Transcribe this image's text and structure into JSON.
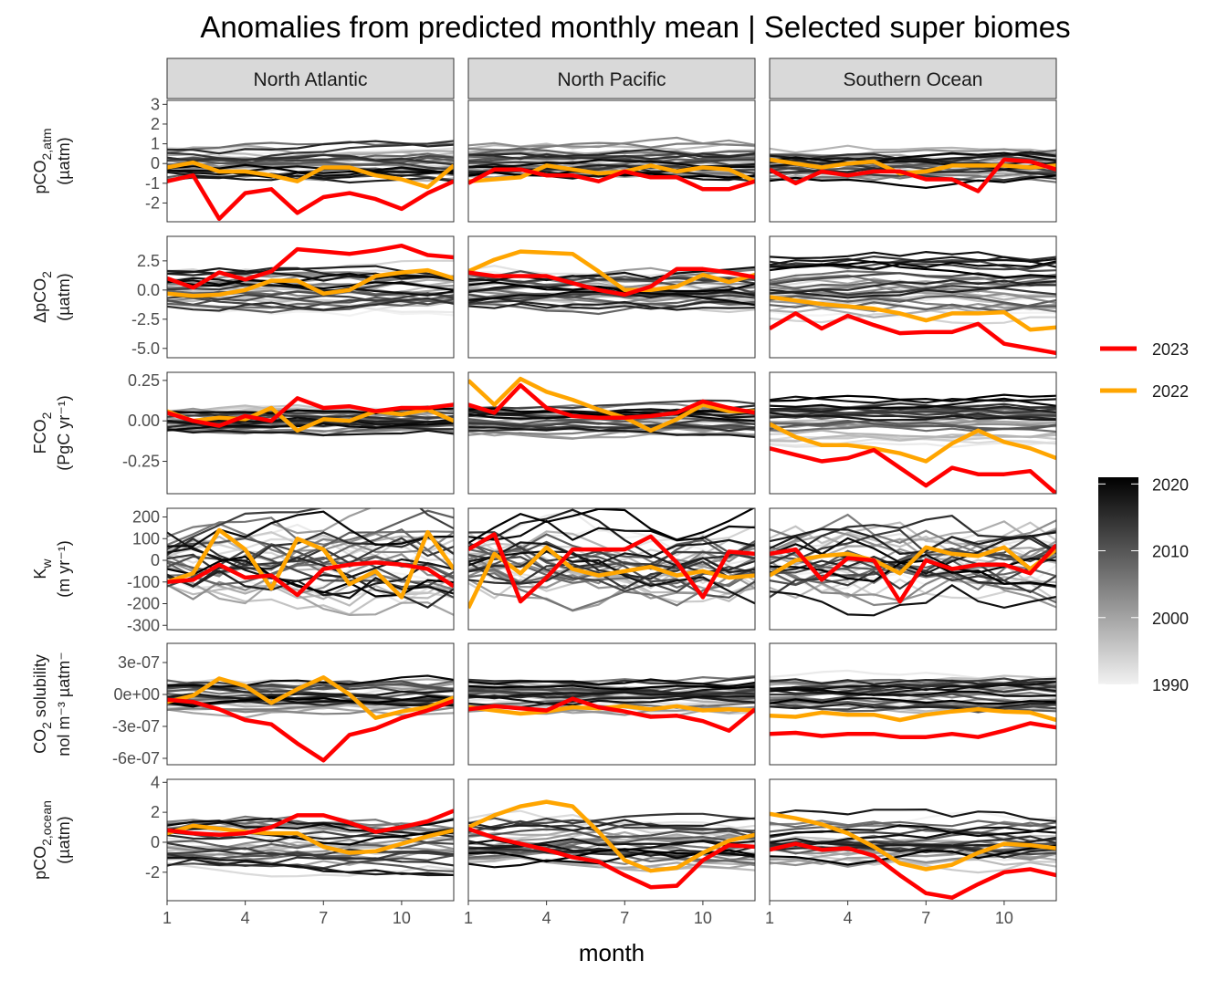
{
  "chart_data": {
    "type": "line",
    "title": "Anomalies from predicted monthly mean | Selected super biomes",
    "xlabel": "month",
    "x": [
      1,
      2,
      3,
      4,
      5,
      6,
      7,
      8,
      9,
      10,
      11,
      12
    ],
    "x_ticks": [
      1,
      4,
      7,
      10
    ],
    "x_tick_labels": [
      "1",
      "4",
      "7",
      "10"
    ],
    "facets": [
      "North Atlantic",
      "North Pacific",
      "Southern Ocean"
    ],
    "variables": [
      {
        "id": "pco2_atm",
        "ylabel_main": "pCO",
        "ylabel_sub": "2,atm",
        "ylabel_sup": "",
        "ylabel_suffix": "",
        "ylabel_line2": "(µatm)",
        "ylim": [
          -2.95,
          3.2
        ],
        "ticks": [
          -2,
          -1,
          0,
          1,
          2,
          3
        ],
        "tick_labels": [
          "-2",
          "-1",
          "0",
          "1",
          "2",
          "3"
        ],
        "bg_amp": 0.9,
        "series": [
          {
            "name": "2023",
            "facet": "North Atlantic",
            "values": [
              -0.9,
              -0.6,
              -2.8,
              -1.5,
              -1.3,
              -2.5,
              -1.7,
              -1.5,
              -1.8,
              -2.3,
              -1.5,
              -0.9
            ]
          },
          {
            "name": "2022",
            "facet": "North Atlantic",
            "values": [
              -0.2,
              0.05,
              -0.4,
              -0.4,
              -0.6,
              -0.9,
              -0.2,
              -0.2,
              -0.6,
              -0.8,
              -1.2,
              -0.1
            ]
          },
          {
            "name": "2023",
            "facet": "North Pacific",
            "values": [
              -1.0,
              -0.3,
              -0.3,
              -0.6,
              -0.6,
              -0.9,
              -0.4,
              -0.7,
              -0.7,
              -1.3,
              -1.3,
              -0.9
            ]
          },
          {
            "name": "2022",
            "facet": "North Pacific",
            "values": [
              -0.9,
              -0.8,
              -0.7,
              -0.1,
              -0.3,
              -0.5,
              -0.4,
              -0.1,
              -0.4,
              -0.2,
              -0.3,
              -0.9
            ]
          },
          {
            "name": "2023",
            "facet": "Southern Ocean",
            "values": [
              -0.3,
              -1.0,
              -0.4,
              -0.6,
              -0.4,
              -0.4,
              -0.8,
              -0.8,
              -1.4,
              0.2,
              0.1,
              -0.3
            ]
          },
          {
            "name": "2022",
            "facet": "Southern Ocean",
            "values": [
              0.2,
              0.0,
              -0.2,
              0.0,
              0.1,
              -0.5,
              -0.4,
              -0.1,
              -0.1,
              -0.1,
              -0.2,
              -0.1
            ]
          }
        ]
      },
      {
        "id": "dpco2",
        "ylabel_main": "ΔpCO",
        "ylabel_sub": "2",
        "ylabel_sup": "",
        "ylabel_suffix": "",
        "ylabel_line2": "(µatm)",
        "ylim": [
          -5.8,
          4.6
        ],
        "ticks": [
          -5,
          -2.5,
          0,
          2.5
        ],
        "tick_labels": [
          "-5.0",
          "-2.5",
          "0.0",
          "2.5"
        ],
        "bg_amp": 1.8,
        "series": [
          {
            "name": "2023",
            "facet": "North Atlantic",
            "values": [
              1.0,
              0.2,
              1.5,
              0.9,
              1.6,
              3.5,
              3.3,
              3.1,
              3.4,
              3.8,
              3.0,
              2.8
            ]
          },
          {
            "name": "2022",
            "facet": "North Atlantic",
            "values": [
              -0.3,
              -0.5,
              -0.4,
              0.0,
              0.8,
              0.8,
              -0.3,
              0.0,
              1.2,
              1.5,
              1.7,
              1.0
            ]
          },
          {
            "name": "2023",
            "facet": "North Pacific",
            "values": [
              1.5,
              1.2,
              1.2,
              1.2,
              0.6,
              0.0,
              -0.4,
              0.3,
              1.8,
              1.8,
              1.5,
              1.1
            ]
          },
          {
            "name": "2022",
            "facet": "North Pacific",
            "values": [
              1.6,
              2.6,
              3.3,
              3.2,
              3.1,
              1.6,
              0.0,
              0.0,
              0.3,
              1.3,
              0.7,
              1.3
            ]
          },
          {
            "name": "2023",
            "facet": "Southern Ocean",
            "values": [
              -3.3,
              -2.0,
              -3.3,
              -2.2,
              -3.0,
              -3.7,
              -3.6,
              -3.6,
              -2.9,
              -4.6,
              -5.0,
              -5.4
            ]
          },
          {
            "name": "2022",
            "facet": "Southern Ocean",
            "values": [
              -0.6,
              -0.9,
              -1.2,
              -1.4,
              -1.6,
              -2.0,
              -2.6,
              -2.0,
              -2.0,
              -1.9,
              -3.4,
              -3.2
            ]
          }
        ]
      },
      {
        "id": "fco2",
        "ylabel_main": "FCO",
        "ylabel_sub": "2",
        "ylabel_sup": "",
        "ylabel_suffix": "",
        "ylabel_line2": "(PgC yr⁻¹)",
        "ylim": [
          -0.45,
          0.3
        ],
        "ticks": [
          -0.25,
          0,
          0.25
        ],
        "tick_labels": [
          "-0.25",
          "0.00",
          "0.25"
        ],
        "bg_amp": 0.09,
        "series": [
          {
            "name": "2023",
            "facet": "North Atlantic",
            "values": [
              0.05,
              0.0,
              -0.03,
              0.03,
              0.0,
              0.14,
              0.08,
              0.09,
              0.06,
              0.08,
              0.08,
              0.1
            ]
          },
          {
            "name": "2022",
            "facet": "North Atlantic",
            "values": [
              0.06,
              0.0,
              0.02,
              0.01,
              0.08,
              -0.06,
              0.01,
              0.0,
              0.06,
              0.04,
              0.07,
              0.0
            ]
          },
          {
            "name": "2023",
            "facet": "North Pacific",
            "values": [
              0.1,
              0.05,
              0.22,
              0.08,
              0.03,
              0.02,
              0.02,
              0.03,
              0.05,
              0.12,
              0.08,
              0.05
            ]
          },
          {
            "name": "2022",
            "facet": "North Pacific",
            "values": [
              0.25,
              0.1,
              0.26,
              0.18,
              0.13,
              0.07,
              0.02,
              -0.06,
              0.01,
              0.1,
              0.06,
              0.06
            ]
          },
          {
            "name": "2023",
            "facet": "Southern Ocean",
            "values": [
              -0.17,
              -0.21,
              -0.25,
              -0.23,
              -0.18,
              -0.29,
              -0.4,
              -0.29,
              -0.33,
              -0.33,
              -0.31,
              -0.45
            ]
          },
          {
            "name": "2022",
            "facet": "Southern Ocean",
            "values": [
              -0.02,
              -0.1,
              -0.15,
              -0.15,
              -0.17,
              -0.2,
              -0.25,
              -0.14,
              -0.06,
              -0.13,
              -0.17,
              -0.23
            ]
          }
        ]
      },
      {
        "id": "kw",
        "ylabel_main": "K",
        "ylabel_sub": "w",
        "ylabel_sup": "",
        "ylabel_suffix": "",
        "ylabel_line2": "(m yr⁻¹)",
        "ylim": [
          -320,
          240
        ],
        "ticks": [
          -300,
          -200,
          -100,
          0,
          100,
          200
        ],
        "tick_labels": [
          "-300",
          "-200",
          "-100",
          "0",
          "100",
          "200"
        ],
        "bg_amp": 130,
        "series": [
          {
            "name": "2023",
            "facet": "North Atlantic",
            "values": [
              -100,
              -90,
              -20,
              -80,
              -70,
              -160,
              -40,
              -20,
              -10,
              -20,
              -40,
              -120
            ]
          },
          {
            "name": "2022",
            "facet": "North Atlantic",
            "values": [
              -100,
              -60,
              140,
              50,
              -130,
              100,
              50,
              -110,
              -50,
              -170,
              130,
              -40
            ]
          },
          {
            "name": "2023",
            "facet": "North Pacific",
            "values": [
              50,
              120,
              -190,
              -80,
              50,
              50,
              50,
              110,
              -10,
              -170,
              40,
              30
            ]
          },
          {
            "name": "2022",
            "facet": "North Pacific",
            "values": [
              -220,
              30,
              -60,
              60,
              -40,
              -70,
              -50,
              -30,
              -70,
              -50,
              -80,
              -70
            ]
          },
          {
            "name": "2023",
            "facet": "Southern Ocean",
            "values": [
              30,
              50,
              -90,
              10,
              0,
              -190,
              0,
              -40,
              -20,
              -20,
              -60,
              70
            ]
          },
          {
            "name": "2022",
            "facet": "Southern Ocean",
            "values": [
              -70,
              0,
              20,
              30,
              0,
              -60,
              60,
              30,
              20,
              60,
              -40,
              50
            ]
          }
        ]
      },
      {
        "id": "solubility",
        "ylabel_main": "CO",
        "ylabel_sub": "2",
        "ylabel_sup": "",
        "ylabel_suffix": " solubility",
        "ylabel_line2": "nol m⁻³ µatm⁻",
        "ylim": [
          -6.6e-07,
          4.8e-07
        ],
        "ticks": [
          -6e-07,
          -3e-07,
          0,
          3e-07
        ],
        "tick_labels": [
          "-6e-07",
          "-3e-07",
          "0e+00",
          "3e-07"
        ],
        "bg_amp": 1.6e-07,
        "series": [
          {
            "name": "2023",
            "facet": "North Atlantic",
            "values": [
              -5e-08,
              -7e-08,
              -1.4e-07,
              -2.4e-07,
              -2.8e-07,
              -4.6e-07,
              -6.2e-07,
              -3.8e-07,
              -3.2e-07,
              -2.2e-07,
              -1.5e-07,
              -6e-08
            ]
          },
          {
            "name": "2022",
            "facet": "North Atlantic",
            "values": [
              -7e-08,
              -1e-08,
              1.5e-07,
              8e-08,
              -8e-08,
              5e-08,
              1.6e-07,
              0.0,
              -2.2e-07,
              -1.6e-07,
              -1.2e-07,
              -3e-08
            ]
          },
          {
            "name": "2023",
            "facet": "North Pacific",
            "values": [
              -1.4e-07,
              -1.1e-07,
              -1.3e-07,
              -1.5e-07,
              -4e-08,
              -1.2e-07,
              -1.6e-07,
              -2.1e-07,
              -2e-07,
              -2.5e-07,
              -3.4e-07,
              -1.4e-07
            ]
          },
          {
            "name": "2022",
            "facet": "North Pacific",
            "values": [
              -1.2e-07,
              -1.5e-07,
              -1.8e-07,
              -1.6e-07,
              -1.2e-07,
              -1.3e-07,
              -1.1e-07,
              -1.4e-07,
              -1.1e-07,
              -1.5e-07,
              -1.4e-07,
              -1.5e-07
            ]
          },
          {
            "name": "2023",
            "facet": "Southern Ocean",
            "values": [
              -3.7e-07,
              -3.6e-07,
              -3.9e-07,
              -3.7e-07,
              -3.7e-07,
              -4e-07,
              -4e-07,
              -3.7e-07,
              -4e-07,
              -3.4e-07,
              -2.7e-07,
              -3.1e-07
            ]
          },
          {
            "name": "2022",
            "facet": "Southern Ocean",
            "values": [
              -2e-07,
              -2.1e-07,
              -1.7e-07,
              -1.9e-07,
              -1.9e-07,
              -2.4e-07,
              -1.9e-07,
              -1.6e-07,
              -1.4e-07,
              -1.6e-07,
              -1.7e-07,
              -2.4e-07
            ]
          }
        ]
      },
      {
        "id": "pco2_ocean",
        "ylabel_main": "pCO",
        "ylabel_sub": "2,ocean",
        "ylabel_sup": "",
        "ylabel_suffix": "",
        "ylabel_line2": "(µatm)",
        "ylim": [
          -3.9,
          4.2
        ],
        "ticks": [
          -2,
          0,
          2,
          4
        ],
        "tick_labels": [
          "-2",
          "0",
          "2",
          "4"
        ],
        "bg_amp": 1.7,
        "series": [
          {
            "name": "2023",
            "facet": "North Atlantic",
            "values": [
              0.8,
              0.6,
              0.5,
              0.6,
              1.0,
              1.8,
              1.8,
              1.3,
              0.7,
              1.0,
              1.4,
              2.1
            ]
          },
          {
            "name": "2022",
            "facet": "North Atlantic",
            "values": [
              0.6,
              1.1,
              0.9,
              0.7,
              0.6,
              0.6,
              -0.3,
              -0.7,
              -0.6,
              -0.1,
              0.4,
              0.8
            ]
          },
          {
            "name": "2023",
            "facet": "North Pacific",
            "values": [
              0.9,
              0.3,
              -0.1,
              -0.5,
              -1.0,
              -1.3,
              -2.2,
              -3.0,
              -2.9,
              -1.2,
              -0.2,
              -0.3
            ]
          },
          {
            "name": "2022",
            "facet": "North Pacific",
            "values": [
              1.0,
              1.8,
              2.4,
              2.7,
              2.4,
              0.7,
              -1.2,
              -1.9,
              -1.7,
              -0.7,
              0.1,
              0.5
            ]
          },
          {
            "name": "2023",
            "facet": "Southern Ocean",
            "values": [
              -0.5,
              -0.1,
              -0.5,
              -0.4,
              -0.9,
              -2.2,
              -3.4,
              -3.7,
              -2.8,
              -2.0,
              -1.8,
              -2.2
            ]
          },
          {
            "name": "2022",
            "facet": "Southern Ocean",
            "values": [
              1.9,
              1.6,
              1.2,
              0.6,
              -0.3,
              -1.4,
              -1.8,
              -1.5,
              -0.7,
              -0.1,
              -0.2,
              -0.4
            ]
          }
        ]
      }
    ],
    "background_years": [
      1990,
      1991,
      1992,
      1993,
      1994,
      1995,
      1996,
      1997,
      1998,
      1999,
      2000,
      2001,
      2002,
      2003,
      2004,
      2005,
      2006,
      2007,
      2008,
      2009,
      2010,
      2011,
      2012,
      2013,
      2014,
      2015,
      2016,
      2017,
      2018,
      2019,
      2020,
      2021
    ],
    "legend": {
      "position": "right",
      "highlight": [
        {
          "label": "2023",
          "color": "#ff0000"
        },
        {
          "label": "2022",
          "color": "#ffa500"
        }
      ],
      "colorbar": {
        "ticks": [
          1990,
          2000,
          2010,
          2020
        ],
        "tick_labels": [
          "1990",
          "2000",
          "2010",
          "2020"
        ],
        "range": [
          1990,
          2021
        ],
        "low_color": "#f2f2f2",
        "high_color": "#000000"
      }
    },
    "grid": false
  }
}
